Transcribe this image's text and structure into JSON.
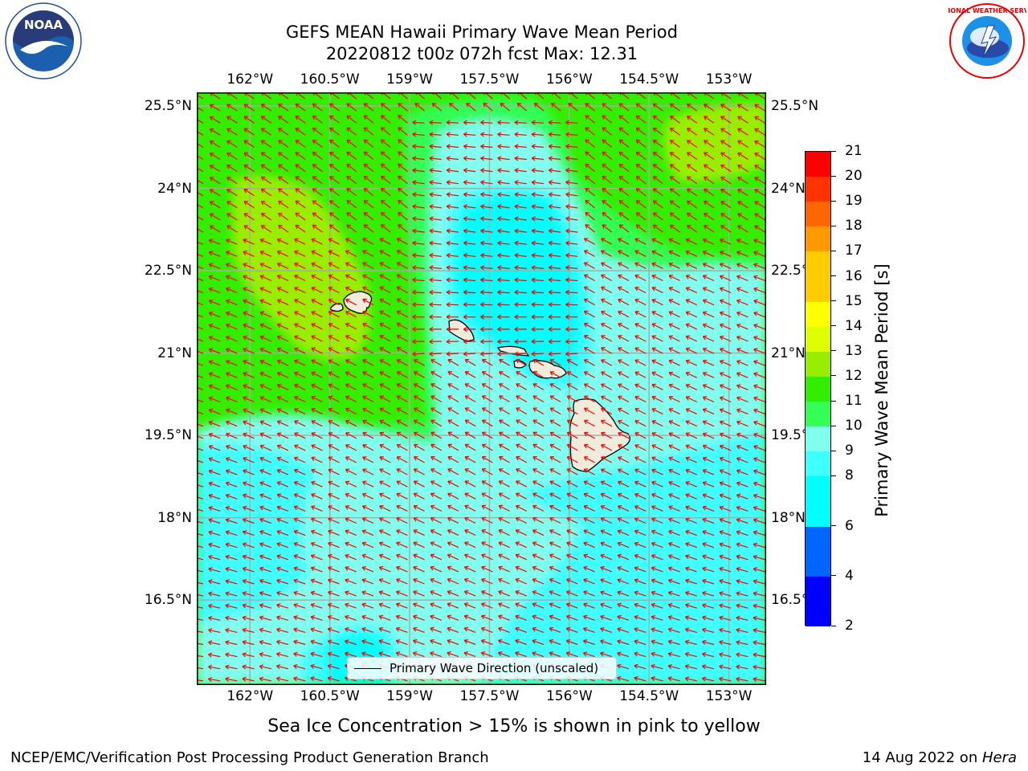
{
  "header": {
    "title_line1": "GEFS MEAN Hawaii Primary Wave Mean Period",
    "title_line2": "20220812 t00z 072h fcst   Max: 12.31"
  },
  "logos": {
    "noaa": "NOAA",
    "nws": "NATIONAL WEATHER SERVICE"
  },
  "map": {
    "lon_ticks": [
      "162°W",
      "160.5°W",
      "159°W",
      "157.5°W",
      "156°W",
      "154.5°W",
      "153°W"
    ],
    "lon_values": [
      -162,
      -160.5,
      -159,
      -157.5,
      -156,
      -154.5,
      -153
    ],
    "lat_ticks": [
      "25.5°N",
      "24°N",
      "22.5°N",
      "21°N",
      "19.5°N",
      "18°N",
      "16.5°N"
    ],
    "lat_values": [
      25.5,
      24,
      22.5,
      21,
      19.5,
      18,
      16.5
    ],
    "lon_range": [
      -163,
      -152.3
    ],
    "lat_range": [
      14.95,
      25.75
    ],
    "grid": true,
    "vector_field": "primary-wave-direction",
    "vector_color": "#ff0000",
    "land_color": "#f0ecdc",
    "legend_label": "Primary Wave Direction (unscaled)"
  },
  "colorbar": {
    "label": "Primary Wave Mean Period [s]",
    "ticks": [
      "2",
      "4",
      "6",
      "8",
      "9",
      "10",
      "11",
      "12",
      "13",
      "14",
      "15",
      "16",
      "17",
      "18",
      "19",
      "20",
      "21"
    ],
    "colors": [
      "#0000ff",
      "#0066ff",
      "#00ffff",
      "#40ffff",
      "#80ffee",
      "#33ff55",
      "#33ee00",
      "#99ee00",
      "#ddff00",
      "#ffff00",
      "#ffcc00",
      "#ff9900",
      "#ff6600",
      "#ff3300",
      "#ff0000"
    ]
  },
  "notes": {
    "sea_ice": "Sea Ice Concentration > 15% is shown in pink to yellow",
    "footer_left": "NCEP/EMC/Verification Post Processing Product Generation Branch",
    "footer_date": "14 Aug 2022 on ",
    "footer_host": "Hera"
  }
}
